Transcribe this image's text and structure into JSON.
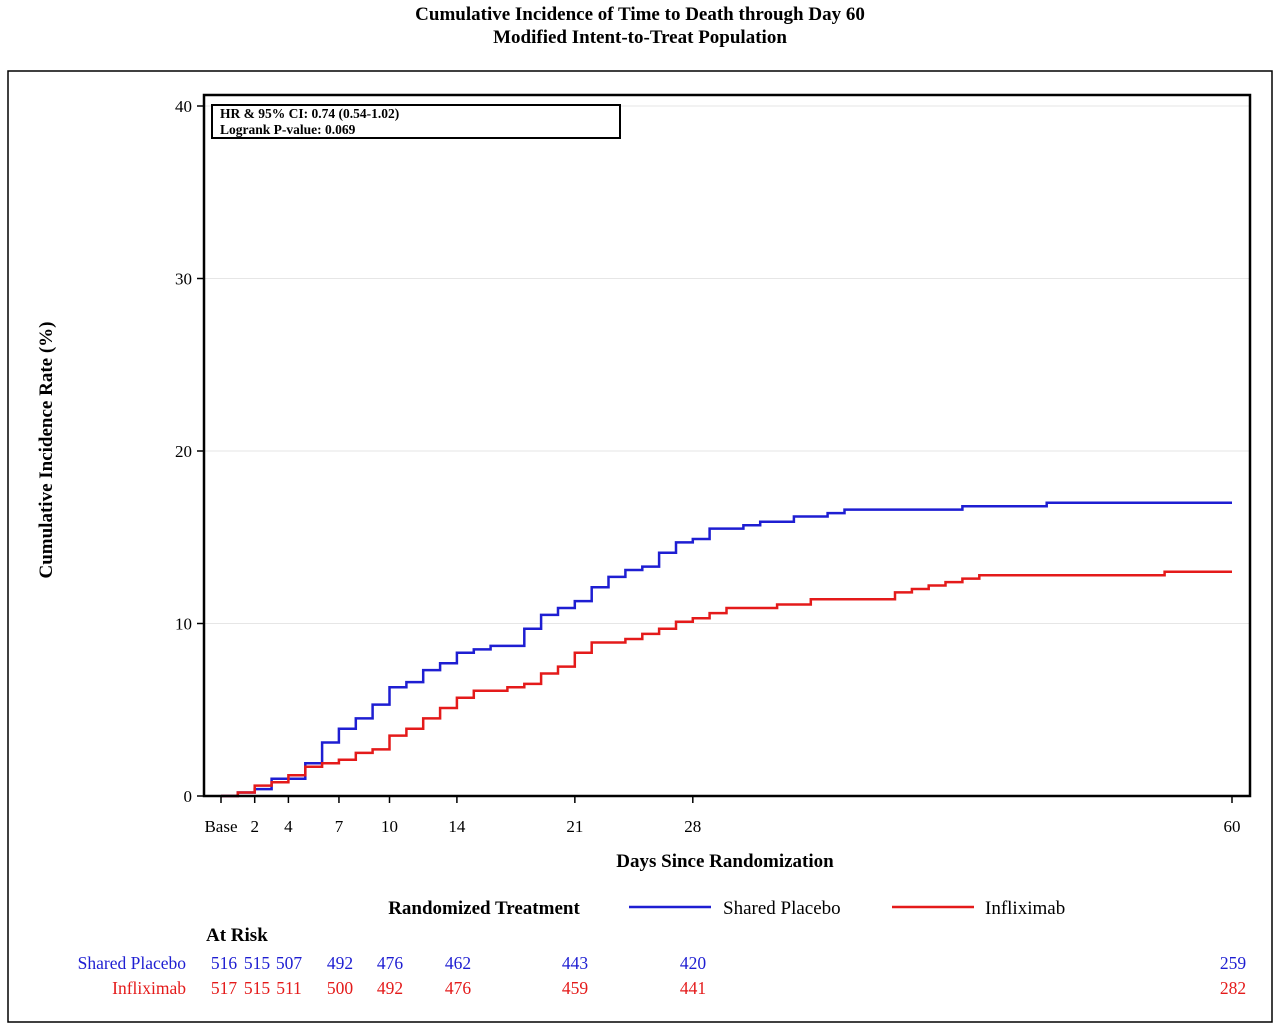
{
  "title": {
    "line1": "Cumulative Incidence of Time to Death through Day 60",
    "line2": "Modified Intent-to-Treat Population"
  },
  "inset": {
    "line1": "HR & 95% CI:  0.74 (0.54-1.02)",
    "line2": "Logrank P-value:  0.069"
  },
  "legend": {
    "title": "Randomized Treatment"
  },
  "at_risk": {
    "heading": "At Risk",
    "days": [
      0,
      2,
      4,
      7,
      10,
      14,
      21,
      28,
      60
    ],
    "rows": [
      {
        "label": "Shared Placebo",
        "color": "#1e1ed2",
        "values": [
          516,
          515,
          507,
          492,
          476,
          462,
          443,
          420,
          259
        ]
      },
      {
        "label": "Infliximab",
        "color": "#e41a1a",
        "values": [
          517,
          515,
          511,
          500,
          492,
          476,
          459,
          441,
          282
        ]
      }
    ]
  },
  "chart_data": {
    "type": "line",
    "step": true,
    "title": "Cumulative Incidence of Time to Death through Day 60",
    "subtitle": "Modified Intent-to-Treat Population",
    "xlabel": "Days Since Randomization",
    "ylabel": "Cumulative Incidence Rate (%)",
    "xlim": [
      0,
      60
    ],
    "ylim": [
      0,
      40
    ],
    "x_ticks": [
      {
        "value": 0,
        "label": "Base"
      },
      {
        "value": 2,
        "label": "2"
      },
      {
        "value": 4,
        "label": "4"
      },
      {
        "value": 7,
        "label": "7"
      },
      {
        "value": 10,
        "label": "10"
      },
      {
        "value": 14,
        "label": "14"
      },
      {
        "value": 21,
        "label": "21"
      },
      {
        "value": 28,
        "label": "28"
      },
      {
        "value": 60,
        "label": "60"
      }
    ],
    "y_ticks": [
      0,
      10,
      20,
      30,
      40
    ],
    "grid": "horizontal",
    "legend_position": "bottom",
    "series": [
      {
        "name": "Shared Placebo",
        "color": "#1e1ed2",
        "points": [
          [
            0,
            0
          ],
          [
            1,
            0.2
          ],
          [
            2,
            0.4
          ],
          [
            3,
            1.0
          ],
          [
            5,
            1.9
          ],
          [
            6,
            3.1
          ],
          [
            7,
            3.9
          ],
          [
            8,
            4.5
          ],
          [
            9,
            5.3
          ],
          [
            10,
            6.3
          ],
          [
            11,
            6.6
          ],
          [
            12,
            7.3
          ],
          [
            13,
            7.7
          ],
          [
            14,
            8.3
          ],
          [
            15,
            8.5
          ],
          [
            16,
            8.7
          ],
          [
            18,
            9.7
          ],
          [
            19,
            10.5
          ],
          [
            20,
            10.9
          ],
          [
            21,
            11.3
          ],
          [
            22,
            12.1
          ],
          [
            23,
            12.7
          ],
          [
            24,
            13.1
          ],
          [
            25,
            13.3
          ],
          [
            26,
            14.1
          ],
          [
            27,
            14.7
          ],
          [
            28,
            14.9
          ],
          [
            29,
            15.5
          ],
          [
            31,
            15.7
          ],
          [
            32,
            15.9
          ],
          [
            34,
            16.2
          ],
          [
            36,
            16.4
          ],
          [
            37,
            16.6
          ],
          [
            44,
            16.8
          ],
          [
            49,
            17.0
          ],
          [
            60,
            17.0
          ]
        ]
      },
      {
        "name": "Infliximab",
        "color": "#e41a1a",
        "points": [
          [
            0,
            0
          ],
          [
            1,
            0.2
          ],
          [
            2,
            0.6
          ],
          [
            3,
            0.8
          ],
          [
            4,
            1.2
          ],
          [
            5,
            1.7
          ],
          [
            6,
            1.9
          ],
          [
            7,
            2.1
          ],
          [
            8,
            2.5
          ],
          [
            9,
            2.7
          ],
          [
            10,
            3.5
          ],
          [
            11,
            3.9
          ],
          [
            12,
            4.5
          ],
          [
            13,
            5.1
          ],
          [
            14,
            5.7
          ],
          [
            15,
            6.1
          ],
          [
            17,
            6.3
          ],
          [
            18,
            6.5
          ],
          [
            19,
            7.1
          ],
          [
            20,
            7.5
          ],
          [
            21,
            8.3
          ],
          [
            22,
            8.9
          ],
          [
            24,
            9.1
          ],
          [
            25,
            9.4
          ],
          [
            26,
            9.7
          ],
          [
            27,
            10.1
          ],
          [
            28,
            10.3
          ],
          [
            29,
            10.6
          ],
          [
            30,
            10.9
          ],
          [
            33,
            11.1
          ],
          [
            35,
            11.4
          ],
          [
            40,
            11.8
          ],
          [
            41,
            12.0
          ],
          [
            42,
            12.2
          ],
          [
            43,
            12.4
          ],
          [
            44,
            12.6
          ],
          [
            45,
            12.8
          ],
          [
            56,
            13.0
          ],
          [
            60,
            13.0
          ]
        ]
      }
    ]
  }
}
